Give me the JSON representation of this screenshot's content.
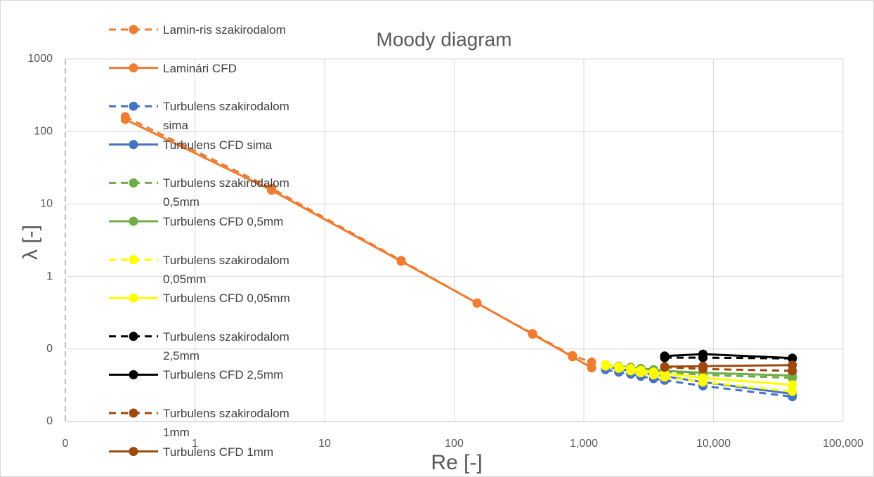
{
  "chart_data": {
    "type": "line",
    "title": "Moody diagram",
    "x_label": "Re [-]",
    "y_label": "λ [-]",
    "x_log": true,
    "y_log": true,
    "grid": true,
    "legend": "top-left",
    "xlim": [
      0.1,
      100000
    ],
    "xticks": [
      {
        "value": 0.1,
        "label": "0"
      },
      1,
      10,
      100,
      {
        "value": 1000,
        "label": "1,000"
      },
      {
        "value": 10000,
        "label": "10,000"
      },
      {
        "value": 100000,
        "label": "100,000"
      }
    ],
    "ylim": [
      0.01,
      1000
    ],
    "yticks": [
      {
        "value": 0.01,
        "label": "0"
      },
      {
        "value": 0.1,
        "label": "0"
      },
      1,
      10,
      100,
      1000
    ],
    "series": [
      {
        "name": "Lamin-ris szakirodalom",
        "color": "#ed7d31",
        "style": "dashed",
        "x": [
          0.29,
          3.9,
          39,
          150,
          402,
          818,
          1148
        ],
        "values": [
          160,
          16.5,
          1.66,
          0.43,
          0.163,
          0.081,
          0.066
        ]
      },
      {
        "name": "Laminári CFD",
        "color": "#ed7d31",
        "style": "solid",
        "x": [
          0.29,
          3.9,
          39,
          150,
          402,
          818,
          1148
        ],
        "values": [
          147,
          15.5,
          1.62,
          0.43,
          0.16,
          0.078,
          0.055
        ]
      },
      {
        "name": "Turbulens szakirodalom sima",
        "color": "#4472c4",
        "style": "dashed",
        "x": [
          1470,
          1860,
          2300,
          2750,
          3450,
          4200,
          8300,
          40600
        ],
        "values": [
          0.052,
          0.048,
          0.045,
          0.042,
          0.039,
          0.037,
          0.031,
          0.022
        ]
      },
      {
        "name": "Turbulens CFD sima",
        "color": "#4472c4",
        "style": "solid",
        "x": [
          1470,
          1860,
          2300,
          2750,
          3450,
          4200,
          8300,
          40600
        ],
        "values": [
          0.058,
          0.053,
          0.05,
          0.047,
          0.044,
          0.042,
          0.035,
          0.024
        ]
      },
      {
        "name": "Turbulens szakirodalom 0,5mm",
        "color": "#70ad47",
        "style": "dashed",
        "x": [
          1470,
          1860,
          2300,
          2750,
          3450,
          4200,
          8300,
          40600
        ],
        "values": [
          0.06,
          0.057,
          0.054,
          0.052,
          0.05,
          0.048,
          0.044,
          0.04
        ]
      },
      {
        "name": "Turbulens CFD 0,5mm",
        "color": "#70ad47",
        "style": "solid",
        "x": [
          1470,
          1860,
          2300,
          2750,
          3450,
          4200,
          8300,
          40600
        ],
        "values": [
          0.061,
          0.058,
          0.056,
          0.054,
          0.052,
          0.05,
          0.047,
          0.043
        ]
      },
      {
        "name": "Turbulens szakirodalom 0,05mm",
        "color": "#ffff00",
        "style": "dashed",
        "x": [
          1470,
          1860,
          2300,
          2750,
          3450,
          4200,
          8300,
          40600
        ],
        "values": [
          0.058,
          0.054,
          0.05,
          0.047,
          0.044,
          0.041,
          0.035,
          0.026
        ]
      },
      {
        "name": "Turbulens CFD 0,05mm",
        "color": "#ffff00",
        "style": "solid",
        "x": [
          1470,
          1860,
          2300,
          2750,
          3450,
          4200,
          8300,
          40600
        ],
        "values": [
          0.061,
          0.057,
          0.054,
          0.051,
          0.048,
          0.046,
          0.04,
          0.032
        ]
      },
      {
        "name": "Turbulens szakirodalom 2,5mm",
        "color": "#000000",
        "style": "dashed",
        "x": [
          4200,
          8300,
          40600
        ],
        "values": [
          0.076,
          0.076,
          0.074
        ]
      },
      {
        "name": "Turbulens CFD 2,5mm",
        "color": "#000000",
        "style": "solid",
        "x": [
          4200,
          8300,
          40600
        ],
        "values": [
          0.08,
          0.085,
          0.075
        ]
      },
      {
        "name": "Turbulens szakirodalom 1mm",
        "color": "#9e480e",
        "style": "dashed",
        "x": [
          4200,
          8300,
          40600
        ],
        "values": [
          0.056,
          0.053,
          0.05
        ]
      },
      {
        "name": "Turbulens CFD 1mm",
        "color": "#9e480e",
        "style": "solid",
        "x": [
          4200,
          8300,
          40600
        ],
        "values": [
          0.057,
          0.058,
          0.06
        ]
      }
    ]
  }
}
